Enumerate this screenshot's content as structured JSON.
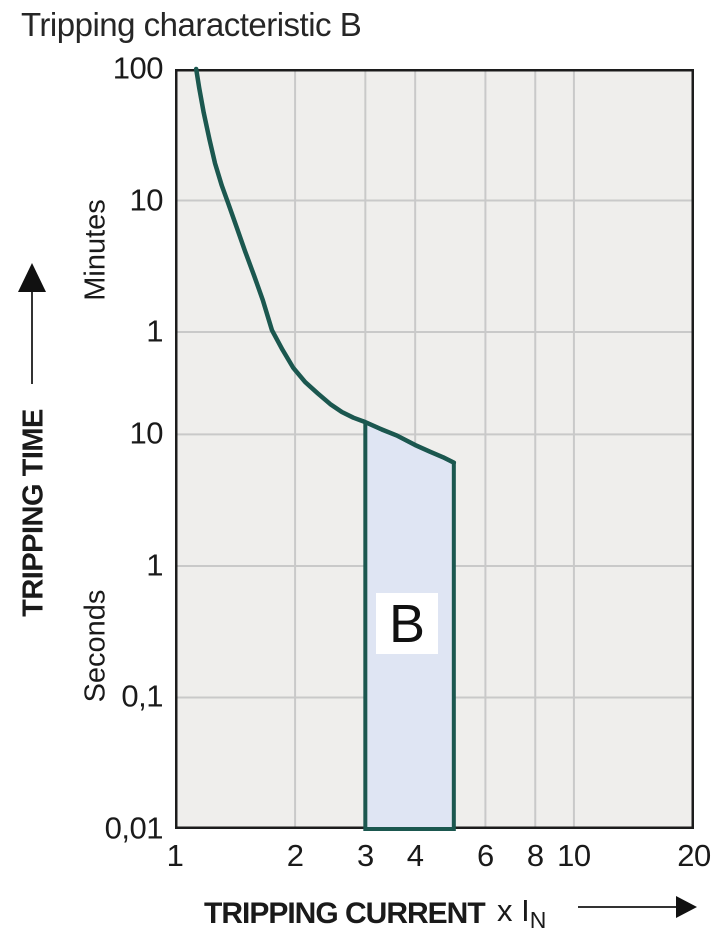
{
  "title": "Tripping characteristic B",
  "colors": {
    "curve": "#1b574f",
    "region_fill": "#dfe5f3",
    "plot_background": "#efeeec",
    "gridline": "#c9c9c9",
    "plot_border": "#1c1c1c",
    "text": "#1a1a1a"
  },
  "chart_data": {
    "type": "line",
    "title": "Tripping characteristic B",
    "xlabel": "TRIPPING CURRENT",
    "x_unit": {
      "prefix": "x I",
      "sub": "N"
    },
    "ylabel": "TRIPPING TIME",
    "x_scale": "log",
    "y_scale": "log",
    "xlim": [
      1,
      20
    ],
    "ylim_seconds": [
      0.01,
      6000
    ],
    "grid": "on",
    "x_ticks": [
      {
        "label": "1",
        "value": 1
      },
      {
        "label": "2",
        "value": 2
      },
      {
        "label": "3",
        "value": 3
      },
      {
        "label": "4",
        "value": 4
      },
      {
        "label": "6",
        "value": 6
      },
      {
        "label": "8",
        "value": 8
      },
      {
        "label": "10",
        "value": 10
      },
      {
        "label": "20",
        "value": 20
      }
    ],
    "y_ticks": [
      {
        "label": "100",
        "seconds": 6000,
        "unit": "minutes"
      },
      {
        "label": "10",
        "seconds": 600,
        "unit": "minutes"
      },
      {
        "label": "1",
        "seconds": 60,
        "unit": "minutes"
      },
      {
        "label": "10",
        "seconds": 10,
        "unit": "seconds"
      },
      {
        "label": "1",
        "seconds": 1,
        "unit": "seconds"
      },
      {
        "label": "0,1",
        "seconds": 0.1,
        "unit": "seconds"
      },
      {
        "label": "0,01",
        "seconds": 0.01,
        "unit": "seconds"
      }
    ],
    "y_unit_labels": [
      {
        "label": "Minutes"
      },
      {
        "label": "Seconds"
      }
    ],
    "x_gridlines": [
      2,
      3,
      4,
      6,
      8,
      10
    ],
    "y_gridlines_seconds": [
      600,
      60,
      10,
      1,
      0.1
    ],
    "series": [
      {
        "name": "thermal-tripping-curve",
        "points": [
          [
            1.13,
            6000
          ],
          [
            1.15,
            4300
          ],
          [
            1.18,
            2800
          ],
          [
            1.22,
            1750
          ],
          [
            1.26,
            1150
          ],
          [
            1.31,
            780
          ],
          [
            1.36,
            570
          ],
          [
            1.43,
            370
          ],
          [
            1.5,
            245
          ],
          [
            1.58,
            160
          ],
          [
            1.66,
            105
          ],
          [
            1.75,
            62
          ],
          [
            1.86,
            44
          ],
          [
            1.98,
            32
          ],
          [
            2.12,
            25
          ],
          [
            2.28,
            20.5
          ],
          [
            2.45,
            17
          ],
          [
            2.62,
            14.8
          ],
          [
            2.8,
            13.4
          ],
          [
            3.0,
            12.4
          ]
        ]
      }
    ],
    "region": {
      "label": "B",
      "x_min": 3,
      "x_max": 5,
      "t_bottom_seconds": 0.01,
      "top_boundary_points": [
        [
          3.0,
          12.4
        ],
        [
          3.3,
          10.9
        ],
        [
          3.6,
          9.8
        ],
        [
          4.0,
          8.3
        ],
        [
          4.35,
          7.4
        ],
        [
          4.7,
          6.7
        ],
        [
          5.0,
          6.1
        ]
      ]
    }
  }
}
